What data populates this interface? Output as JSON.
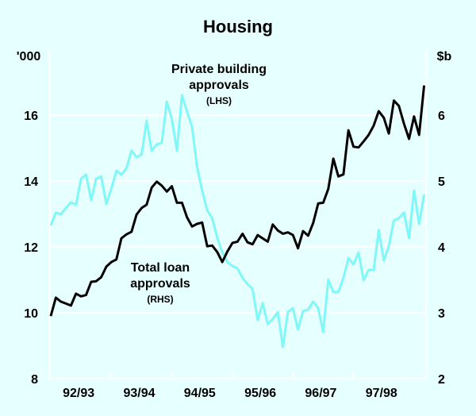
{
  "chart_data": {
    "type": "line",
    "title": "Housing",
    "left_axis": {
      "unit_label": "'000",
      "range": [
        8,
        18
      ],
      "ticks": [
        "8",
        "10",
        "12",
        "14",
        "16"
      ]
    },
    "right_axis": {
      "unit_label": "$b",
      "range": [
        2,
        7
      ],
      "ticks": [
        "2",
        "3",
        "4",
        "5",
        "6"
      ]
    },
    "x_range": [
      "1992-07",
      "1998-09"
    ],
    "x_tick_labels": [
      "92/93",
      "93/94",
      "94/95",
      "95/96",
      "96/97",
      "97/98"
    ],
    "grid": true,
    "background_color": "#e6ffff",
    "series": [
      {
        "name": "Private building approvals",
        "name_lines": [
          "Private building",
          "approvals"
        ],
        "axis_label": "(LHS)",
        "axis": "left",
        "color": "#80f8f8",
        "start": "1992-07",
        "frequency": "monthly",
        "values": [
          12.65,
          13.04,
          12.99,
          13.18,
          13.35,
          13.28,
          14.07,
          14.19,
          13.42,
          14.07,
          14.14,
          13.3,
          13.76,
          14.31,
          14.19,
          14.39,
          14.92,
          14.72,
          14.8,
          15.83,
          14.92,
          15.11,
          15.16,
          16.41,
          15.88,
          14.92,
          16.6,
          16.12,
          15.64,
          14.43,
          13.71,
          13.11,
          12.87,
          12.27,
          11.83,
          11.54,
          11.42,
          11.35,
          11.06,
          10.87,
          10.72,
          9.78,
          10.29,
          9.66,
          9.81,
          10.02,
          8.96,
          10.02,
          10.14,
          9.49,
          10.05,
          10.1,
          10.34,
          10.14,
          9.42,
          11.01,
          10.63,
          10.63,
          11.06,
          11.66,
          11.47,
          11.83,
          10.99,
          11.3,
          11.3,
          12.51,
          11.59,
          12.02,
          12.8,
          12.87,
          13.04,
          12.27,
          13.71,
          12.7,
          13.59
        ]
      },
      {
        "name": "Total loan approvals",
        "name_lines": [
          "Total loan",
          "approvals"
        ],
        "axis_label": "(RHS)",
        "axis": "right",
        "color": "#000000",
        "start": "1992-07",
        "frequency": "monthly",
        "values": [
          2.95,
          3.23,
          3.17,
          3.14,
          3.11,
          3.29,
          3.25,
          3.27,
          3.47,
          3.48,
          3.54,
          3.7,
          3.77,
          3.81,
          4.13,
          4.19,
          4.23,
          4.49,
          4.59,
          4.64,
          4.9,
          4.99,
          4.93,
          4.84,
          4.92,
          4.67,
          4.67,
          4.45,
          4.31,
          4.35,
          4.37,
          4.01,
          4.02,
          3.92,
          3.77,
          3.93,
          4.06,
          4.08,
          4.2,
          4.07,
          4.04,
          4.18,
          4.13,
          4.08,
          4.34,
          4.25,
          4.2,
          4.22,
          4.18,
          3.98,
          4.24,
          4.17,
          4.36,
          4.66,
          4.67,
          4.88,
          5.34,
          5.07,
          5.1,
          5.77,
          5.52,
          5.51,
          5.6,
          5.7,
          5.84,
          6.06,
          5.96,
          5.72,
          6.22,
          6.14,
          5.87,
          5.64,
          5.98,
          5.7,
          6.45
        ]
      }
    ]
  }
}
